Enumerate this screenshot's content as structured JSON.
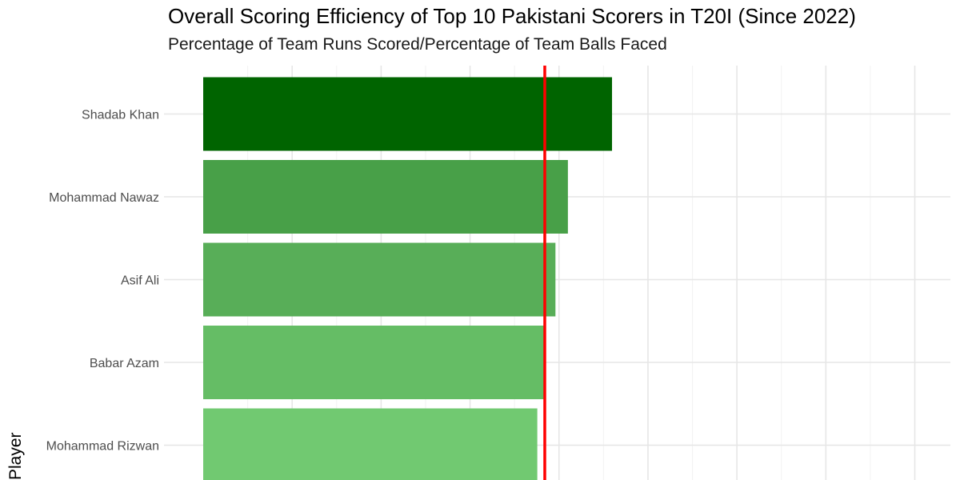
{
  "chart_data": {
    "type": "bar",
    "orientation": "horizontal",
    "title": "Overall Scoring Efficiency of Top 10 Pakistani Scorers in T20I (Since 2022)",
    "subtitle": "Percentage of Team Runs Scored/Percentage of Team Balls Faced",
    "ylabel": "Player",
    "categories": [
      "Shadab Khan",
      "Mohammad Nawaz",
      "Asif Ali",
      "Babar Azam",
      "Mohammad Rizwan"
    ],
    "values": [
      1.149,
      1.025,
      0.99,
      0.957,
      0.939
    ],
    "bar_colors": [
      "#006400",
      "#48a048",
      "#58ae58",
      "#65bd65",
      "#71c971"
    ],
    "xlim": [
      0,
      2.1
    ],
    "reference_line": {
      "value": 0.96,
      "color": "#ff0000"
    },
    "grid": true
  }
}
